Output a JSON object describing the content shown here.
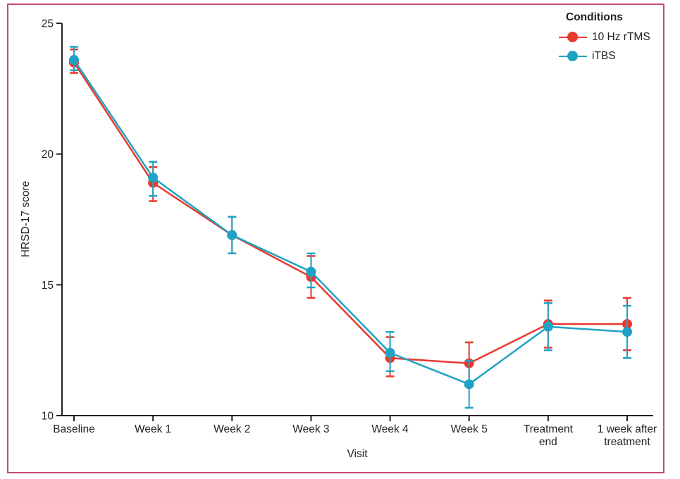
{
  "figure": {
    "frame_color": "#c34a70",
    "background": "#ffffff",
    "axis_color": "#231f20",
    "text_color": "#231f20"
  },
  "legend": {
    "title": "Conditions"
  },
  "chart_data": {
    "type": "line",
    "title": "",
    "xlabel": "Visit",
    "ylabel": "HRSD-17 score",
    "ylim": [
      10,
      25
    ],
    "yticks": [
      10,
      15,
      20,
      25
    ],
    "grid": false,
    "legend_position": "top-right",
    "error_bars": true,
    "categories": [
      "Baseline",
      "Week 1",
      "Week 2",
      "Week 3",
      "Week 4",
      "Week 5",
      "Treatment end",
      "1 week after treatment"
    ],
    "category_display": [
      [
        "Baseline"
      ],
      [
        "Week 1"
      ],
      [
        "Week 2"
      ],
      [
        "Week 3"
      ],
      [
        "Week 4"
      ],
      [
        "Week 5"
      ],
      [
        "Treatment",
        "end"
      ],
      [
        "1 week after",
        "treatment"
      ]
    ],
    "series": [
      {
        "name": "10 Hz rTMS",
        "color": "#e8392f",
        "values": [
          23.5,
          18.9,
          16.9,
          15.3,
          12.2,
          12.0,
          13.5,
          13.5
        ],
        "err_low": [
          23.1,
          18.2,
          16.2,
          14.5,
          11.5,
          11.2,
          12.6,
          12.5
        ],
        "err_high": [
          24.0,
          19.5,
          17.6,
          16.1,
          13.0,
          12.8,
          14.4,
          14.5
        ]
      },
      {
        "name": "iTBS",
        "color": "#1fa3c4",
        "values": [
          23.6,
          19.1,
          16.9,
          15.5,
          12.4,
          11.2,
          13.4,
          13.2
        ],
        "err_low": [
          23.2,
          18.4,
          16.2,
          14.9,
          11.7,
          10.3,
          12.5,
          12.2
        ],
        "err_high": [
          24.1,
          19.7,
          17.6,
          16.2,
          13.2,
          12.1,
          14.3,
          14.2
        ]
      }
    ]
  }
}
